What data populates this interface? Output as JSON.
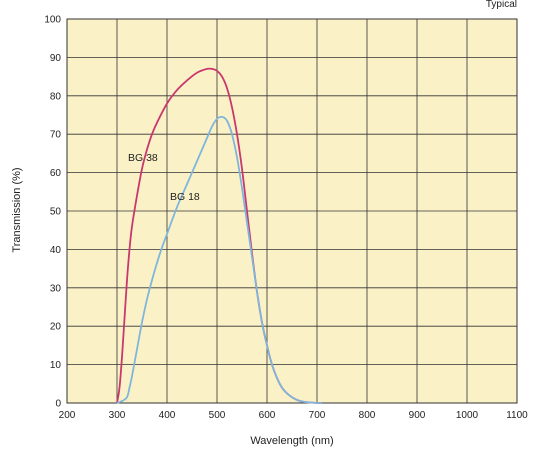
{
  "chart_data": {
    "type": "line",
    "note": "Typical",
    "xlabel": "Wavelength (nm)",
    "ylabel": "Transmission (%)",
    "xlim": [
      200,
      1100
    ],
    "ylim": [
      0,
      100
    ],
    "xticks": [
      200,
      300,
      400,
      500,
      600,
      700,
      800,
      900,
      1000,
      1100
    ],
    "yticks": [
      0,
      10,
      20,
      30,
      40,
      50,
      60,
      70,
      80,
      90,
      100
    ],
    "grid": true,
    "background_color": "#FBF1C7",
    "grid_color": "#333333",
    "series": [
      {
        "name": "BG 38",
        "color": "#C8386E",
        "x": [
          300,
          305,
          310,
          315,
          320,
          325,
          330,
          340,
          350,
          360,
          370,
          380,
          400,
          420,
          440,
          460,
          480,
          490,
          500,
          510,
          520,
          530,
          540,
          550,
          560,
          570,
          580,
          590,
          600,
          610,
          620,
          630,
          640,
          650,
          660,
          670,
          680,
          690,
          700,
          710
        ],
        "y": [
          0,
          4,
          12,
          22,
          32,
          40,
          46,
          54,
          61,
          66,
          70,
          73,
          78,
          81.5,
          84,
          86,
          87,
          87,
          86.5,
          85,
          82,
          77,
          70,
          61,
          50,
          39,
          29,
          21,
          15,
          10,
          6.5,
          4,
          2.5,
          1.5,
          0.8,
          0.4,
          0.2,
          0.1,
          0,
          0
        ]
      },
      {
        "name": "BG 18",
        "color": "#7FB6DC",
        "x": [
          300,
          310,
          320,
          325,
          330,
          340,
          350,
          360,
          370,
          380,
          390,
          400,
          420,
          440,
          460,
          480,
          490,
          500,
          510,
          520,
          530,
          540,
          550,
          560,
          570,
          580,
          590,
          600,
          610,
          620,
          630,
          640,
          650,
          660,
          670,
          680,
          690,
          700,
          710
        ],
        "y": [
          0,
          0.5,
          1.5,
          4,
          7,
          14,
          21,
          27,
          32,
          36.5,
          40.5,
          44,
          51,
          57,
          63,
          69,
          72,
          74,
          74.5,
          73.5,
          70,
          64,
          56,
          47,
          38,
          29,
          21,
          15,
          10,
          6.5,
          4,
          2.5,
          1.5,
          0.8,
          0.4,
          0.2,
          0.1,
          0,
          0
        ]
      }
    ]
  }
}
